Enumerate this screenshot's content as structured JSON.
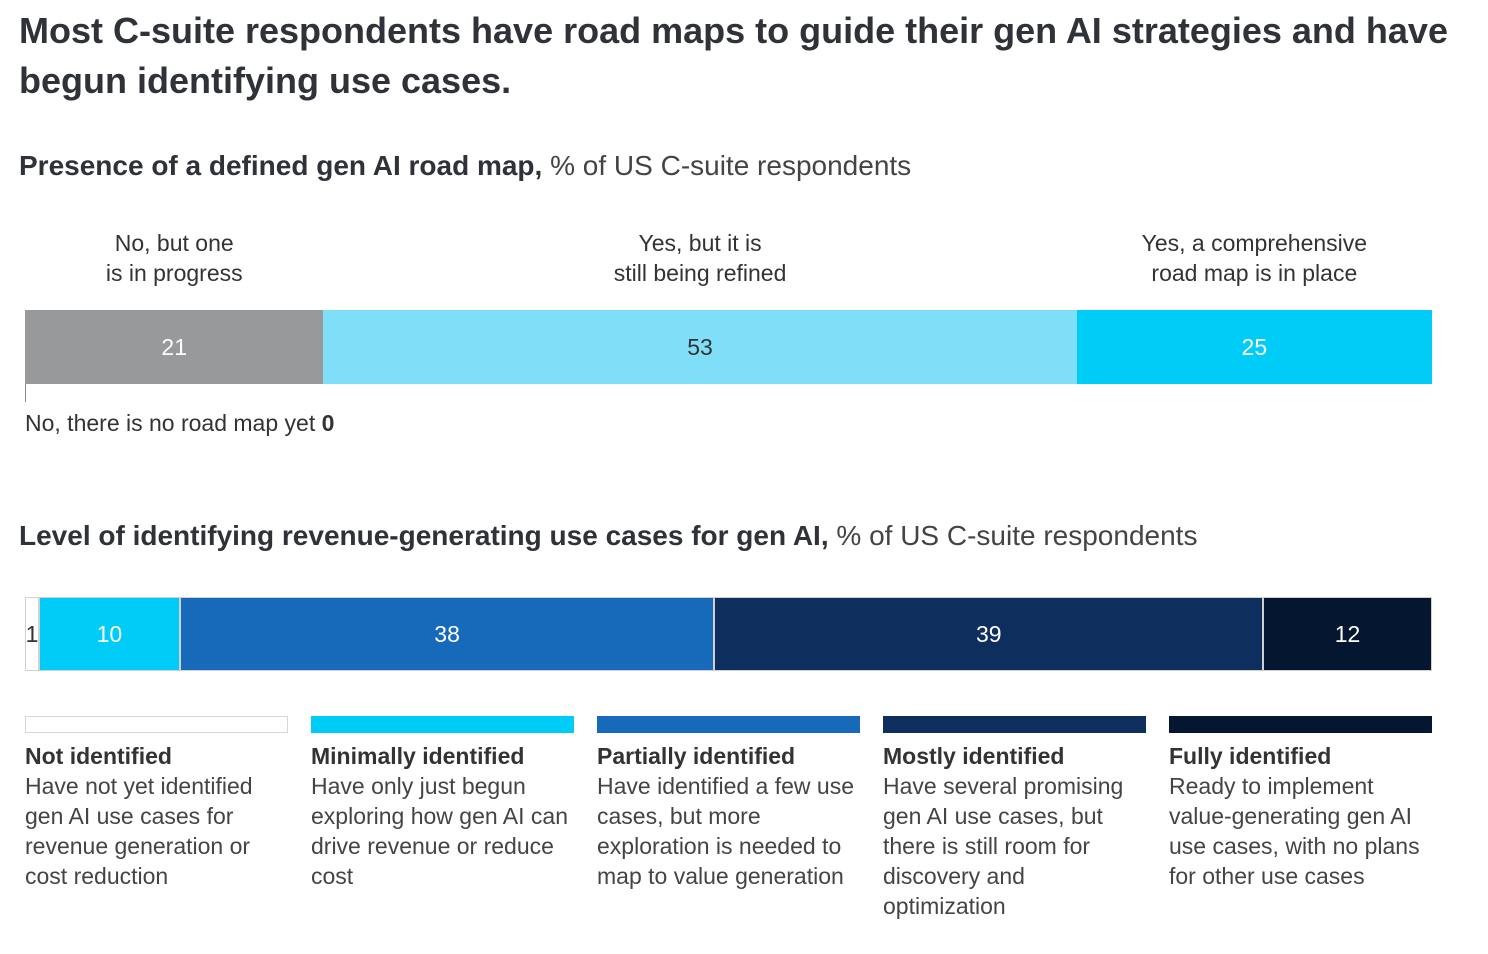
{
  "title": "Most C-suite respondents have road maps to guide their gen AI strategies and have begun identifying use cases.",
  "chart_data": [
    {
      "type": "bar",
      "orientation": "horizontal-stacked",
      "title": "Presence of a defined gen AI road map,",
      "unit": "% of US C-suite respondents",
      "categories": [
        "No, there is no road map yet",
        "No, but one is in progress",
        "Yes, but it is still being refined",
        "Yes, a comprehensive road map is in place"
      ],
      "labels_display": [
        "No, there is no road map yet",
        "No, but one\nis in progress",
        "Yes, but it is\nstill being refined",
        "Yes, a comprehensive\nroad map is in place"
      ],
      "values": [
        0,
        21,
        53,
        25
      ],
      "colors": [
        "#ffffff",
        "#97999b",
        "#7fdff9",
        "#00cdf7"
      ]
    },
    {
      "type": "bar",
      "orientation": "horizontal-stacked",
      "title": "Level of identifying revenue-generating use cases for gen AI,",
      "unit": "% of US C-suite respondents",
      "categories": [
        "Not identified",
        "Minimally identified",
        "Partially identified",
        "Mostly identified",
        "Fully identified"
      ],
      "descriptions": [
        "Have not yet identified gen AI use cases for revenue generation or cost reduction",
        "Have only just begun exploring how gen AI can drive revenue or reduce cost",
        "Have identified a few use cases, but more exploration is needed to map to value generation",
        "Have several promising gen AI use cases, but there is still room for discovery and optimization",
        "Ready to implement value-generating gen AI use cases, with no plans for other use cases"
      ],
      "values": [
        1,
        10,
        38,
        39,
        12
      ],
      "colors": [
        "#ffffff",
        "#00cdf7",
        "#1769b9",
        "#0e2f5e",
        "#051631"
      ]
    }
  ]
}
